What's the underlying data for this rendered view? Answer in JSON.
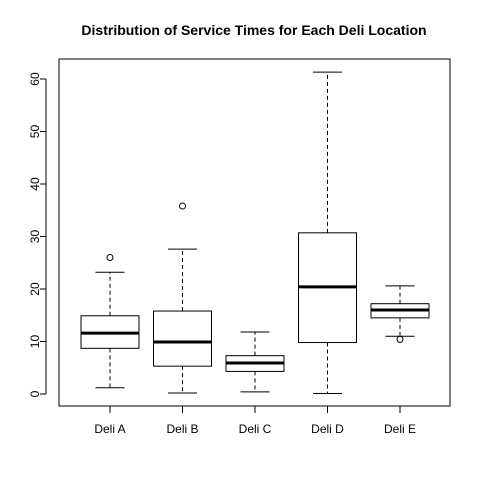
{
  "chart_data": {
    "type": "boxplot",
    "title": "Distribution of Service Times for Each Deli Location",
    "xlabel": "",
    "ylabel": "",
    "ylim": [
      -2.5,
      64
    ],
    "yticks": [
      0,
      10,
      20,
      30,
      40,
      50,
      60
    ],
    "categories": [
      "Deli A",
      "Deli B",
      "Deli C",
      "Deli D",
      "Deli E"
    ],
    "boxes": [
      {
        "label": "Deli A",
        "min": 1.2,
        "q1": 8.7,
        "median": 11.6,
        "q3": 14.9,
        "max": 23.2,
        "outliers": [
          26.0
        ]
      },
      {
        "label": "Deli B",
        "min": 0.2,
        "q1": 5.3,
        "median": 9.9,
        "q3": 15.8,
        "max": 27.6,
        "outliers": [
          35.8
        ]
      },
      {
        "label": "Deli C",
        "min": 0.4,
        "q1": 4.3,
        "median": 5.9,
        "q3": 7.3,
        "max": 11.8,
        "outliers": []
      },
      {
        "label": "Deli D",
        "min": 0.1,
        "q1": 9.8,
        "median": 20.4,
        "q3": 30.7,
        "max": 61.3,
        "outliers": []
      },
      {
        "label": "Deli E",
        "min": 11.0,
        "q1": 14.5,
        "median": 16.0,
        "q3": 17.2,
        "max": 20.6,
        "outliers": [
          10.4
        ]
      }
    ],
    "grid": false,
    "legend": "none"
  }
}
